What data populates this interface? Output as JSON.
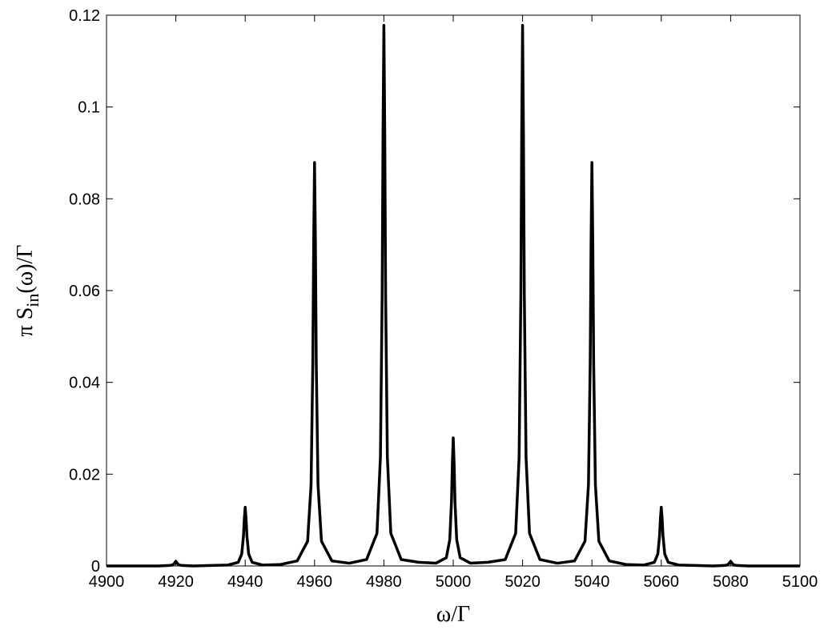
{
  "chart_data": {
    "type": "line",
    "xlabel": "ω/Γ",
    "ylabel": {
      "main": "π S",
      "sub": "in",
      "tail": "(ω)/Γ"
    },
    "color": "#000000",
    "xlim": [
      4900,
      5100
    ],
    "xticks": [
      4900,
      4920,
      4940,
      4960,
      4980,
      5000,
      5020,
      5040,
      5060,
      5080,
      5100
    ],
    "ylim": [
      0,
      0.12
    ],
    "yticks": [
      0,
      0.02,
      0.04,
      0.06,
      0.08,
      0.1,
      0.12
    ],
    "x": [
      4900,
      4910,
      4915,
      4918,
      4919,
      4919.5,
      4919.75,
      4920,
      4920.25,
      4920.5,
      4921,
      4922,
      4925,
      4930,
      4935,
      4938,
      4939,
      4939.5,
      4939.75,
      4940,
      4940.25,
      4940.5,
      4941,
      4942,
      4945,
      4950,
      4955,
      4958,
      4959,
      4959.5,
      4959.75,
      4960,
      4960.25,
      4960.5,
      4961,
      4962,
      4965,
      4970,
      4975,
      4978,
      4979,
      4979.5,
      4979.75,
      4980,
      4980.25,
      4980.5,
      4981,
      4982,
      4985,
      4990,
      4995,
      4998,
      4999,
      4999.5,
      4999.75,
      5000,
      5000.25,
      5000.5,
      5001,
      5002,
      5005,
      5010,
      5015,
      5018,
      5019,
      5019.5,
      5019.75,
      5020,
      5020.25,
      5020.5,
      5021,
      5022,
      5025,
      5030,
      5035,
      5038,
      5039,
      5039.5,
      5039.75,
      5040,
      5040.25,
      5040.5,
      5041,
      5042,
      5045,
      5050,
      5055,
      5058,
      5059,
      5059.5,
      5059.75,
      5060,
      5060.25,
      5060.5,
      5061,
      5062,
      5065,
      5070,
      5075,
      5078,
      5079,
      5079.5,
      5079.75,
      5080,
      5080.25,
      5080.5,
      5081,
      5082,
      5085,
      5090,
      5100
    ],
    "values": [
      0,
      0,
      0,
      0.0001,
      0.0002,
      0.0005,
      0.0008,
      0.001,
      0.0008,
      0.0005,
      0.0002,
      0.0001,
      0,
      0.0001,
      0.0002,
      0.0008,
      0.0026,
      0.0065,
      0.0103,
      0.0128,
      0.0103,
      0.0065,
      0.0026,
      0.0008,
      0.0002,
      0.0003,
      0.0011,
      0.0054,
      0.0177,
      0.0441,
      0.0704,
      0.0879,
      0.0704,
      0.0441,
      0.0177,
      0.0054,
      0.0011,
      0.0006,
      0.0014,
      0.0071,
      0.0237,
      0.059,
      0.0943,
      0.1178,
      0.0943,
      0.059,
      0.0237,
      0.0071,
      0.0014,
      0.0008,
      0.0006,
      0.0018,
      0.0057,
      0.0141,
      0.0224,
      0.0279,
      0.0224,
      0.0141,
      0.0057,
      0.0018,
      0.0006,
      0.0008,
      0.0014,
      0.0071,
      0.0237,
      0.059,
      0.0943,
      0.1178,
      0.0943,
      0.059,
      0.0237,
      0.0071,
      0.0014,
      0.0006,
      0.0011,
      0.0054,
      0.0177,
      0.0441,
      0.0704,
      0.0879,
      0.0704,
      0.0441,
      0.0177,
      0.0054,
      0.0011,
      0.0003,
      0.0002,
      0.0008,
      0.0026,
      0.0065,
      0.0103,
      0.0128,
      0.0103,
      0.0065,
      0.0026,
      0.0008,
      0.0002,
      0.0001,
      0,
      0.0001,
      0.0002,
      0.0005,
      0.0008,
      0.001,
      0.0008,
      0.0005,
      0.0002,
      0.0001,
      0,
      0,
      0
    ]
  }
}
